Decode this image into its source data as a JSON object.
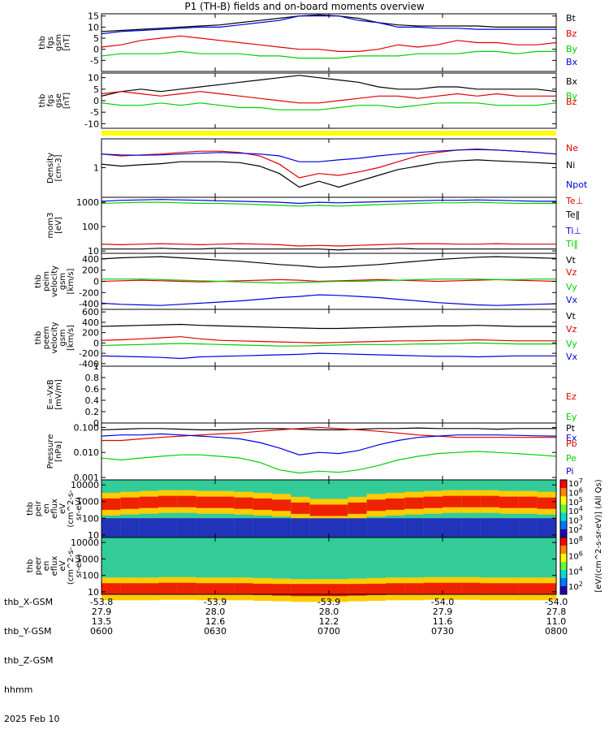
{
  "title": "P1 (TH-B) fields and on-board moments overview",
  "colors": {
    "black": "#000000",
    "red": "#e00000",
    "green": "#00d000",
    "blue": "#0000e0",
    "yellow": "#ffff00"
  },
  "chart_data": [
    {
      "type": "line",
      "ylabel_lines": [
        "thb",
        "fgs",
        "gsm",
        "[nT]"
      ],
      "ylim": [
        -10,
        16
      ],
      "yticks": [
        15,
        10,
        5,
        0,
        -5
      ],
      "series": [
        {
          "name": "Bt",
          "color": "black",
          "values": [
            8,
            8.5,
            9,
            9.5,
            10,
            10.5,
            11,
            12,
            13,
            14,
            15,
            15.5,
            15,
            14,
            12,
            11,
            10.5,
            10.5,
            10.5,
            10.5,
            10,
            10,
            10,
            10
          ]
        },
        {
          "name": "Bz",
          "color": "red",
          "values": [
            1,
            2,
            4,
            5,
            6,
            5,
            4,
            3,
            2,
            1,
            0,
            0,
            -1,
            -1,
            0,
            2,
            1,
            2,
            4,
            3,
            3,
            2,
            2,
            3
          ]
        },
        {
          "name": "By",
          "color": "green",
          "values": [
            -3,
            -2,
            -2,
            -2,
            -1,
            -2,
            -2,
            -2,
            -3,
            -3,
            -4,
            -4,
            -4,
            -3,
            -3,
            -3,
            -2,
            -2,
            -2,
            -1,
            -1,
            -2,
            -1,
            -1
          ]
        },
        {
          "name": "Bx",
          "color": "blue",
          "values": [
            7,
            8,
            8.5,
            9,
            9.5,
            10,
            10,
            11,
            12,
            13,
            15,
            15,
            15,
            13,
            12,
            10,
            10,
            9.5,
            9.5,
            9,
            9,
            9,
            9,
            9
          ]
        }
      ]
    },
    {
      "type": "line",
      "ylabel_lines": [
        "thb",
        "fgs",
        "gse",
        "[nT]"
      ],
      "ylim": [
        -12,
        12
      ],
      "yticks": [
        10,
        5,
        0,
        -5,
        -10
      ],
      "series": [
        {
          "name": "Bx",
          "color": "black",
          "values": [
            2,
            4,
            5,
            4,
            5,
            6,
            7,
            8,
            9,
            10,
            11,
            10,
            9,
            8,
            6,
            5,
            5,
            6,
            6,
            5,
            5,
            5,
            5,
            4
          ]
        },
        {
          "name": "By",
          "color": "green",
          "values": [
            -1,
            -2,
            -2,
            -1,
            -2,
            -1,
            -2,
            -3,
            -3,
            -4,
            -4,
            -4,
            -3,
            -2,
            -2,
            -3,
            -2,
            -1,
            -1,
            -1,
            -2,
            -2,
            -2,
            -1
          ]
        },
        {
          "name": "Bz",
          "color": "red",
          "values": [
            3,
            4,
            3,
            2,
            3,
            4,
            3,
            2,
            1,
            0,
            -1,
            -1,
            0,
            1,
            2,
            2,
            1,
            2,
            3,
            2,
            3,
            2,
            2,
            2
          ]
        }
      ]
    },
    {
      "type": "line",
      "log": true,
      "ylabel_lines": [
        "Density",
        "[cm-3]"
      ],
      "ylim": [
        0.03,
        30
      ],
      "yticks": [
        1
      ],
      "series": [
        {
          "name": "Ne",
          "color": "red",
          "values": [
            5,
            4,
            4.5,
            5,
            6,
            7,
            7,
            6,
            4,
            1.5,
            0.3,
            0.5,
            0.4,
            0.6,
            1,
            2,
            4,
            6,
            8,
            9,
            8,
            7,
            6,
            5
          ]
        },
        {
          "name": "Ni",
          "color": "black",
          "values": [
            1.5,
            1.2,
            1.4,
            1.6,
            2,
            2,
            2,
            1.8,
            1.2,
            0.5,
            0.1,
            0.2,
            0.1,
            0.2,
            0.4,
            0.8,
            1.2,
            1.8,
            2.2,
            2.5,
            2.2,
            2,
            1.8,
            1.6
          ]
        },
        {
          "name": "Npot",
          "color": "blue",
          "values": [
            5,
            4.5,
            4.3,
            4.5,
            5,
            5.5,
            6,
            5.5,
            5,
            4,
            2,
            2,
            2.5,
            3,
            4,
            5,
            6,
            7,
            8,
            8.5,
            8,
            7,
            6,
            5
          ]
        }
      ]
    },
    {
      "type": "line",
      "log": true,
      "ylabel_lines": [
        "mom3",
        "[eV]"
      ],
      "ylim": [
        8,
        1600
      ],
      "yticks": [
        1000,
        100,
        10
      ],
      "series": [
        {
          "name": "Te⊥",
          "color": "red",
          "values": [
            19,
            18,
            19,
            20,
            19,
            18,
            19,
            20,
            19,
            18,
            16,
            17,
            16,
            17,
            18,
            19,
            20,
            20,
            19,
            19,
            20,
            19,
            19,
            19
          ]
        },
        {
          "name": "Te‖",
          "color": "black",
          "values": [
            12,
            12,
            12,
            13,
            12,
            12,
            13,
            12,
            12,
            12,
            12,
            12,
            11,
            12,
            12,
            13,
            12,
            12,
            12,
            12,
            12,
            12,
            12,
            12
          ]
        },
        {
          "name": "Ti⊥",
          "color": "blue",
          "values": [
            1100,
            1200,
            1250,
            1300,
            1250,
            1200,
            1150,
            1100,
            1050,
            1000,
            900,
            1000,
            950,
            1000,
            1050,
            1100,
            1150,
            1200,
            1200,
            1250,
            1200,
            1150,
            1100,
            1100
          ]
        },
        {
          "name": "Ti‖",
          "color": "green",
          "values": [
            900,
            950,
            1000,
            1000,
            950,
            900,
            900,
            850,
            800,
            750,
            700,
            750,
            700,
            750,
            800,
            850,
            900,
            950,
            950,
            1000,
            950,
            900,
            900,
            900
          ]
        }
      ]
    },
    {
      "type": "line",
      "ylabel_lines": [
        "thb",
        "peim",
        "velocity",
        "gsm",
        "[km/s]"
      ],
      "ylim": [
        -500,
        500
      ],
      "yticks": [
        400,
        200,
        0,
        -200,
        -400
      ],
      "series": [
        {
          "name": "Vt",
          "color": "black",
          "values": [
            400,
            420,
            430,
            440,
            420,
            400,
            380,
            360,
            330,
            300,
            280,
            250,
            260,
            280,
            300,
            330,
            360,
            390,
            410,
            430,
            440,
            430,
            420,
            410
          ]
        },
        {
          "name": "Vz",
          "color": "red",
          "values": [
            0,
            10,
            20,
            10,
            0,
            -10,
            0,
            10,
            20,
            30,
            20,
            0,
            10,
            20,
            30,
            20,
            10,
            0,
            10,
            20,
            30,
            20,
            10,
            0
          ]
        },
        {
          "name": "Vy",
          "color": "green",
          "values": [
            40,
            40,
            40,
            30,
            20,
            10,
            0,
            -10,
            -20,
            -30,
            -20,
            -10,
            0,
            0,
            10,
            20,
            30,
            40,
            40,
            40,
            30,
            30,
            40,
            40
          ]
        },
        {
          "name": "Vx",
          "color": "blue",
          "values": [
            -390,
            -410,
            -420,
            -430,
            -410,
            -390,
            -370,
            -350,
            -320,
            -290,
            -270,
            -240,
            -250,
            -270,
            -290,
            -320,
            -350,
            -380,
            -400,
            -420,
            -430,
            -420,
            -410,
            -400
          ]
        }
      ]
    },
    {
      "type": "line",
      "ylabel_lines": [
        "thb",
        "peem",
        "velocity",
        "gsm",
        "[km/s]"
      ],
      "ylim": [
        -450,
        650
      ],
      "yticks": [
        600,
        400,
        200,
        0,
        -200,
        -400
      ],
      "series": [
        {
          "name": "Vt",
          "color": "black",
          "values": [
            320,
            330,
            340,
            350,
            360,
            340,
            330,
            320,
            310,
            300,
            290,
            280,
            280,
            290,
            300,
            310,
            320,
            330,
            330,
            340,
            330,
            320,
            320,
            320
          ]
        },
        {
          "name": "Vz",
          "color": "red",
          "values": [
            50,
            60,
            80,
            100,
            120,
            80,
            50,
            40,
            30,
            20,
            10,
            0,
            10,
            20,
            30,
            40,
            40,
            50,
            50,
            60,
            50,
            40,
            40,
            40
          ]
        },
        {
          "name": "Vy",
          "color": "green",
          "values": [
            -50,
            -40,
            -30,
            -20,
            -10,
            -20,
            -30,
            -40,
            -50,
            -60,
            -60,
            -50,
            -40,
            -30,
            -30,
            -30,
            -20,
            -20,
            -10,
            0,
            -10,
            -20,
            -20,
            -20
          ]
        },
        {
          "name": "Vx",
          "color": "blue",
          "values": [
            -250,
            -260,
            -270,
            -280,
            -300,
            -270,
            -260,
            -250,
            -240,
            -230,
            -220,
            -200,
            -210,
            -220,
            -230,
            -240,
            -250,
            -260,
            -260,
            -270,
            -260,
            -250,
            -250,
            -250
          ]
        }
      ]
    },
    {
      "type": "line",
      "ylabel_lines": [
        "E=-VxB",
        "[mV/m]"
      ],
      "ylim": [
        0,
        1
      ],
      "yticks": [
        1.0,
        0.8,
        0.6,
        0.4,
        0.2,
        0.0
      ],
      "series": [
        {
          "name": "Ez",
          "color": "red",
          "values": []
        },
        {
          "name": "Ey",
          "color": "green",
          "values": []
        },
        {
          "name": "Ex",
          "color": "blue",
          "values": []
        }
      ]
    },
    {
      "type": "line",
      "log": true,
      "ylabel_lines": [
        "Pressure",
        "[nPa]"
      ],
      "ylim": [
        0.0008,
        0.15
      ],
      "yticks": [
        0.1,
        0.01,
        0.001
      ],
      "ytick_labels": [
        "0.100",
        "0.010",
        "0.001"
      ],
      "series": [
        {
          "name": "Pt",
          "color": "black",
          "values": [
            0.08,
            0.085,
            0.09,
            0.09,
            0.085,
            0.08,
            0.08,
            0.085,
            0.09,
            0.09,
            0.085,
            0.08,
            0.08,
            0.085,
            0.09,
            0.09,
            0.095,
            0.09,
            0.09,
            0.09,
            0.085,
            0.09,
            0.09,
            0.09
          ]
        },
        {
          "name": "Pb",
          "color": "red",
          "values": [
            0.03,
            0.03,
            0.035,
            0.04,
            0.045,
            0.05,
            0.055,
            0.06,
            0.07,
            0.08,
            0.09,
            0.1,
            0.09,
            0.08,
            0.07,
            0.06,
            0.05,
            0.045,
            0.04,
            0.04,
            0.04,
            0.04,
            0.04,
            0.04
          ]
        },
        {
          "name": "Pe",
          "color": "green",
          "values": [
            0.006,
            0.005,
            0.006,
            0.007,
            0.008,
            0.008,
            0.007,
            0.006,
            0.004,
            0.002,
            0.0015,
            0.0018,
            0.0016,
            0.002,
            0.003,
            0.005,
            0.007,
            0.009,
            0.01,
            0.011,
            0.01,
            0.009,
            0.008,
            0.007
          ]
        },
        {
          "name": "Pi",
          "color": "blue",
          "values": [
            0.045,
            0.05,
            0.05,
            0.055,
            0.05,
            0.045,
            0.04,
            0.035,
            0.025,
            0.015,
            0.008,
            0.01,
            0.009,
            0.012,
            0.02,
            0.03,
            0.04,
            0.045,
            0.05,
            0.05,
            0.05,
            0.048,
            0.046,
            0.045
          ]
        }
      ]
    },
    {
      "type": "heatmap",
      "log": true,
      "ylabel_lines": [
        "thb",
        "peir",
        "en",
        "eflux",
        "eV",
        "(cm^2-s-",
        "sr-eV)"
      ],
      "ylim": [
        7,
        20000
      ],
      "yticks": [
        10000,
        1000,
        100,
        10
      ],
      "peak_energy_ev": [
        700,
        800,
        900,
        1000,
        1000,
        900,
        900,
        800,
        700,
        600,
        400,
        300,
        300,
        400,
        600,
        700,
        800,
        900,
        1000,
        1000,
        1000,
        900,
        900,
        800
      ],
      "colorbar_ticks": [
        "10^7",
        "10^6",
        "10^5",
        "10^4",
        "10^3",
        "10^2"
      ]
    },
    {
      "type": "heatmap",
      "log": true,
      "ylabel_lines": [
        "thb",
        "peer",
        "en",
        "eflux",
        "eV",
        "(cm^2-s-",
        "sr-eV)"
      ],
      "ylim": [
        7,
        20000
      ],
      "yticks": [
        10000,
        1000,
        100,
        10
      ],
      "peak_energy_ev": [
        15,
        15,
        15,
        16,
        16,
        15,
        15,
        15,
        14,
        13,
        12,
        12,
        12,
        13,
        14,
        15,
        15,
        16,
        16,
        16,
        15,
        15,
        15,
        15
      ],
      "colorbar_ticks": [
        "10^8",
        "10^6",
        "10^4",
        "10^2"
      ]
    }
  ],
  "colorbar_label": "[eV/(cm^2-s-sr-eV)] (All Qs)",
  "x_axis": {
    "labels": [
      "thb_X-GSM",
      "thb_Y-GSM",
      "thb_Z-GSM",
      "hhmm",
      "2025 Feb 10"
    ],
    "ticks": [
      {
        "x": "-53.8",
        "y": "27.9",
        "z": "13.5",
        "t": "0600"
      },
      {
        "x": "-53.9",
        "y": "28.0",
        "z": "12.6",
        "t": "0630"
      },
      {
        "x": "-53.9",
        "y": "28.0",
        "z": "12.2",
        "t": "0700"
      },
      {
        "x": "-54.0",
        "y": "27.9",
        "z": "11.6",
        "t": "0730"
      },
      {
        "x": "-54.0",
        "y": "27.8",
        "z": "11.0",
        "t": "0800"
      }
    ]
  }
}
